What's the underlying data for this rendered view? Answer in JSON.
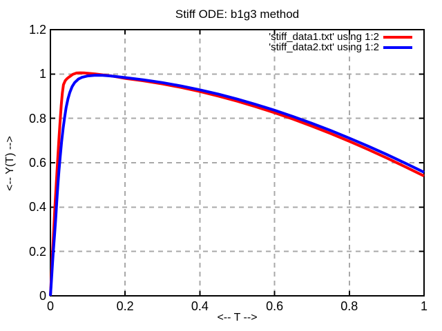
{
  "window": {
    "background": "#ffffff"
  },
  "chart_data": {
    "type": "line",
    "title": "Stiff ODE: b1g3 method",
    "xlabel": "<-- T -->",
    "ylabel": "<-- Y(T) -->",
    "xlim": [
      0,
      1
    ],
    "ylim": [
      0,
      1.2
    ],
    "grid": true,
    "grid_color": "#a8a8a8",
    "axis_color": "#000000",
    "legend_position": "top-right-inside",
    "xticks": [
      {
        "label": "0",
        "value": 0
      },
      {
        "label": "0.2",
        "value": 0.2
      },
      {
        "label": "0.4",
        "value": 0.4
      },
      {
        "label": "0.6",
        "value": 0.6
      },
      {
        "label": "0.8",
        "value": 0.8
      },
      {
        "label": "1",
        "value": 1
      }
    ],
    "yticks": [
      {
        "label": "0",
        "value": 0
      },
      {
        "label": "0.2",
        "value": 0.2
      },
      {
        "label": "0.4",
        "value": 0.4
      },
      {
        "label": "0.6",
        "value": 0.6
      },
      {
        "label": "0.8",
        "value": 0.8
      },
      {
        "label": "1",
        "value": 1
      },
      {
        "label": "1.2",
        "value": 1.2
      }
    ],
    "series": [
      {
        "name": "'stiff_data1.txt' using 1:2",
        "color": "#ff0000",
        "points": [
          [
            0,
            0
          ],
          [
            0.003,
            0.1
          ],
          [
            0.006,
            0.2
          ],
          [
            0.009,
            0.3
          ],
          [
            0.012,
            0.4
          ],
          [
            0.0155,
            0.5
          ],
          [
            0.019,
            0.6
          ],
          [
            0.0225,
            0.7
          ],
          [
            0.026,
            0.79
          ],
          [
            0.029,
            0.86
          ],
          [
            0.032,
            0.915
          ],
          [
            0.035,
            0.952
          ],
          [
            0.04,
            0.971
          ],
          [
            0.045,
            0.98
          ],
          [
            0.05,
            0.9865
          ],
          [
            0.06,
            0.9985
          ],
          [
            0.07,
            1.0045
          ],
          [
            0.08,
            1.0055
          ],
          [
            0.09,
            1.005
          ],
          [
            0.1,
            1.0035
          ],
          [
            0.12,
            1.0
          ],
          [
            0.14,
            0.996
          ],
          [
            0.16,
            0.9922
          ],
          [
            0.18,
            0.9863
          ],
          [
            0.2,
            0.9801
          ],
          [
            0.25,
            0.9689
          ],
          [
            0.3,
            0.9553
          ],
          [
            0.35,
            0.9394
          ],
          [
            0.4,
            0.9211
          ],
          [
            0.45,
            0.9004
          ],
          [
            0.5,
            0.8776
          ],
          [
            0.55,
            0.8525
          ],
          [
            0.6,
            0.8253
          ],
          [
            0.65,
            0.7961
          ],
          [
            0.7,
            0.7648
          ],
          [
            0.75,
            0.7317
          ],
          [
            0.8,
            0.6967
          ],
          [
            0.85,
            0.66
          ],
          [
            0.9,
            0.6216
          ],
          [
            0.95,
            0.5817
          ],
          [
            1.0,
            0.5403
          ]
        ]
      },
      {
        "name": "'stiff_data2.txt' using 1:2",
        "color": "#0000ff",
        "points": [
          [
            0,
            0
          ],
          [
            0.002,
            0.05
          ],
          [
            0.004,
            0.105
          ],
          [
            0.006,
            0.155
          ],
          [
            0.008,
            0.205
          ],
          [
            0.011,
            0.275
          ],
          [
            0.014,
            0.345
          ],
          [
            0.017,
            0.425
          ],
          [
            0.02,
            0.5
          ],
          [
            0.023,
            0.565
          ],
          [
            0.026,
            0.625
          ],
          [
            0.03,
            0.695
          ],
          [
            0.034,
            0.755
          ],
          [
            0.038,
            0.805
          ],
          [
            0.042,
            0.848
          ],
          [
            0.047,
            0.888
          ],
          [
            0.052,
            0.917
          ],
          [
            0.058,
            0.943
          ],
          [
            0.065,
            0.962
          ],
          [
            0.075,
            0.9775
          ],
          [
            0.085,
            0.9855
          ],
          [
            0.1,
            0.9915
          ],
          [
            0.12,
            0.9945
          ],
          [
            0.14,
            0.9938
          ],
          [
            0.16,
            0.9915
          ],
          [
            0.18,
            0.988
          ],
          [
            0.2,
            0.9838
          ],
          [
            0.25,
            0.9737
          ],
          [
            0.3,
            0.9611
          ],
          [
            0.35,
            0.946
          ],
          [
            0.4,
            0.9287
          ],
          [
            0.45,
            0.909
          ],
          [
            0.5,
            0.887
          ],
          [
            0.55,
            0.8628
          ],
          [
            0.6,
            0.8365
          ],
          [
            0.65,
            0.808
          ],
          [
            0.7,
            0.7776
          ],
          [
            0.75,
            0.7452
          ],
          [
            0.8,
            0.7109
          ],
          [
            0.85,
            0.6749
          ],
          [
            0.9,
            0.6372
          ],
          [
            0.95,
            0.5978
          ],
          [
            1.0,
            0.557
          ]
        ]
      }
    ]
  }
}
